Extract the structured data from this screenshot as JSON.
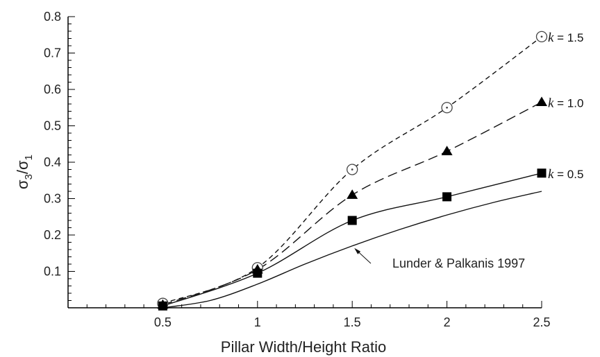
{
  "chart_data": {
    "type": "line",
    "title": "",
    "xlabel": "Pillar Width/Height Ratio",
    "ylabel_main": "σ",
    "ylabel_sub1": "3",
    "ylabel_slash": "/",
    "ylabel_sub2": "1",
    "xlim": [
      0,
      2.5
    ],
    "ylim": [
      0,
      0.8
    ],
    "x_ticks": [
      0.5,
      1,
      1.5,
      2,
      2.5
    ],
    "x_tick_labels": [
      "0.5",
      "1",
      "1.5",
      "2",
      "2.5"
    ],
    "y_ticks": [
      0.1,
      0.2,
      0.3,
      0.4,
      0.5,
      0.6,
      0.7,
      0.8
    ],
    "y_tick_labels": [
      "0.1",
      "0.2",
      "0.3",
      "0.4",
      "0.5",
      "0.6",
      "0.7",
      "0.8"
    ],
    "grid": false,
    "series": [
      {
        "name": "k = 1.5",
        "label_k": "k",
        "label_eq": " = 1.5",
        "marker": "open-circle",
        "line": "short-dash",
        "x": [
          0.5,
          1,
          1.5,
          2,
          2.5
        ],
        "y": [
          0.012,
          0.11,
          0.38,
          0.55,
          0.745
        ]
      },
      {
        "name": "k = 1.0",
        "label_k": "k",
        "label_eq": " = 1.0",
        "marker": "filled-triangle",
        "line": "long-dash",
        "x": [
          0.5,
          1,
          1.5,
          2,
          2.5
        ],
        "y": [
          0.008,
          0.105,
          0.31,
          0.43,
          0.565
        ]
      },
      {
        "name": "k = 0.5",
        "label_k": "k",
        "label_eq": " = 0.5",
        "marker": "filled-square",
        "line": "solid",
        "x": [
          0.5,
          1,
          1.5,
          2,
          2.5
        ],
        "y": [
          0.005,
          0.095,
          0.24,
          0.305,
          0.37
        ]
      },
      {
        "name": "Lunder & Palkanis 1997",
        "marker": "none",
        "line": "solid",
        "x": [
          0.5,
          0.75,
          1,
          1.25,
          1.5,
          1.75,
          2,
          2.25,
          2.5
        ],
        "y": [
          0,
          0.02,
          0.065,
          0.12,
          0.17,
          0.215,
          0.255,
          0.29,
          0.32
        ]
      }
    ],
    "annotations": [
      {
        "text": "Lunder & Palkanis 1997",
        "points_to_x": 1.5,
        "points_to_y": 0.17
      }
    ]
  }
}
